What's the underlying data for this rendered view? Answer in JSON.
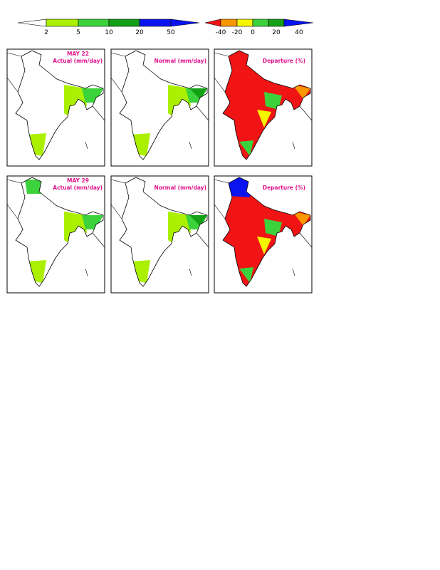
{
  "legends": [
    {
      "labels": [
        "2",
        "5",
        "10",
        "20",
        "50"
      ]
    },
    {
      "labels": [
        "-40",
        "-20",
        "0",
        "20",
        "40"
      ]
    }
  ],
  "rows": [
    {
      "date": "MAY 22",
      "panels": [
        "Actual (mm/day)",
        "Normal (mm/day)",
        "Departure (%)"
      ]
    },
    {
      "date": "MAY 29",
      "panels": [
        "Actual (mm/day)",
        "Normal (mm/day)",
        "Departure (%)"
      ]
    }
  ]
}
